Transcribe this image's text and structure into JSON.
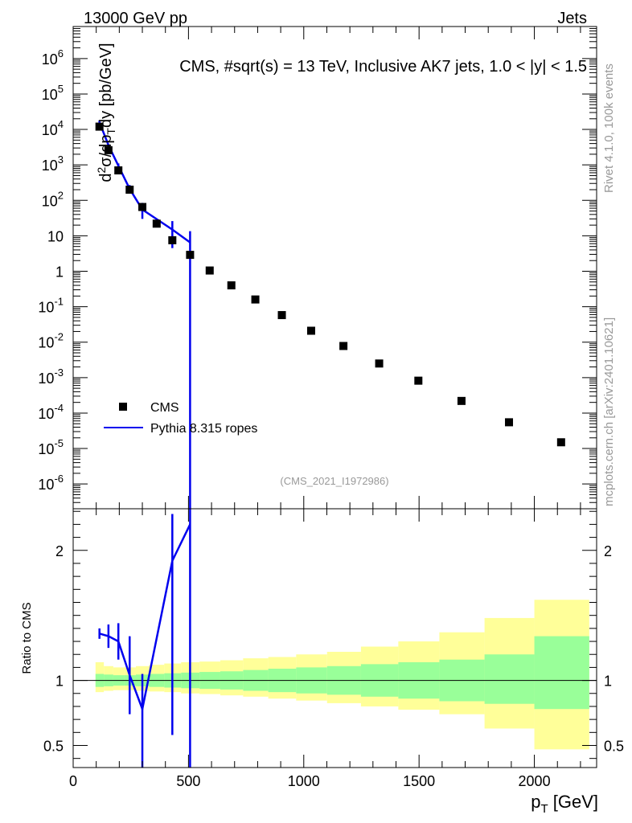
{
  "header": {
    "left": "13000 GeV pp",
    "right": "Jets"
  },
  "side": {
    "top": "Rivet 4.1.0,  100k events",
    "bottom": "mcplots.cern.ch [arXiv:2401.10621]"
  },
  "watermark": "(CMS_2021_I1972986)",
  "colors": {
    "mc": "#0000ee",
    "data": "#000000",
    "band_inner": "#99ff99",
    "band_outer": "#ffff99",
    "side_text": "#999999"
  },
  "chart_data": [
    {
      "type": "scatter",
      "role": "main",
      "title": "CMS, #sqrt(s) = 13 TeV, Inclusive AK7 jets, 1.0 < |y| < 1.5",
      "xlabel": "p_T [GeV]",
      "ylabel": "d^2σ/dp_T dy [pb/GeV]",
      "yscale": "log",
      "xlim": [
        0,
        2270
      ],
      "ylim": [
        2e-07,
        8000000.0
      ],
      "yticks": [
        {
          "v": 1000000.0,
          "base": "10",
          "exp": "6"
        },
        {
          "v": 100000.0,
          "base": "10",
          "exp": "5"
        },
        {
          "v": 10000.0,
          "base": "10",
          "exp": "4"
        },
        {
          "v": 1000.0,
          "base": "10",
          "exp": "3"
        },
        {
          "v": 100.0,
          "base": "10",
          "exp": "2"
        },
        {
          "v": 10,
          "base": "10",
          "exp": ""
        },
        {
          "v": 1,
          "base": "1",
          "exp": ""
        },
        {
          "v": 0.1,
          "base": "10",
          "exp": "-1"
        },
        {
          "v": 0.01,
          "base": "10",
          "exp": "-2"
        },
        {
          "v": 0.001,
          "base": "10",
          "exp": "-3"
        },
        {
          "v": 0.0001,
          "base": "10",
          "exp": "-4"
        },
        {
          "v": 1e-05,
          "base": "10",
          "exp": "-5"
        },
        {
          "v": 1e-06,
          "base": "10",
          "exp": "-6"
        }
      ],
      "legend": [
        {
          "label": "CMS",
          "kind": "marker"
        },
        {
          "label": "Pythia 8.315 ropes",
          "kind": "line"
        }
      ],
      "legend_position": "lower-left",
      "series": [
        {
          "name": "CMS",
          "x": [
            114,
            153,
            196,
            245,
            300,
            362,
            430,
            507,
            592,
            686,
            790,
            905,
            1032,
            1172,
            1327,
            1497,
            1684,
            1890,
            2116
          ],
          "y": [
            12000,
            2600,
            700,
            200,
            65,
            22,
            7.5,
            2.9,
            1.05,
            0.4,
            0.16,
            0.058,
            0.021,
            0.0078,
            0.0025,
            0.00082,
            0.00022,
            5.5e-05,
            1.5e-05
          ]
        },
        {
          "name": "Pythia 8.315 ropes",
          "x": [
            114,
            153,
            196,
            245,
            300,
            430,
            507
          ],
          "y": [
            16000,
            3600,
            950,
            210,
            55,
            15,
            6.5
          ],
          "err_lo": [
            14000,
            3300,
            800,
            160,
            30,
            4.5,
            1e-07
          ],
          "err_hi": [
            18000,
            3900,
            1100,
            270,
            85,
            26,
            13.5
          ]
        }
      ]
    },
    {
      "type": "line",
      "role": "ratio",
      "ylabel": "Ratio to CMS",
      "xlabel": "p_T [GeV]",
      "xlim": [
        0,
        2270
      ],
      "ylim": [
        0.33,
        2.32
      ],
      "xticks": [
        0,
        500,
        1000,
        1500,
        2000
      ],
      "yticks": [
        0.5,
        1,
        2
      ],
      "yticklabels": [
        "0.5",
        "1",
        "2"
      ],
      "bands": {
        "edges": [
          97,
          133,
          174,
          220,
          272,
          330,
          395,
          468,
          548,
          638,
          737,
          846,
          967,
          1101,
          1248,
          1410,
          1588,
          1784,
          2000,
          2238
        ],
        "inner_lo": [
          0.95,
          0.955,
          0.96,
          0.96,
          0.955,
          0.95,
          0.945,
          0.94,
          0.935,
          0.93,
          0.92,
          0.91,
          0.9,
          0.89,
          0.875,
          0.86,
          0.84,
          0.82,
          0.78
        ],
        "inner_hi": [
          1.05,
          1.045,
          1.04,
          1.04,
          1.045,
          1.05,
          1.055,
          1.06,
          1.065,
          1.07,
          1.08,
          1.09,
          1.1,
          1.11,
          1.125,
          1.14,
          1.16,
          1.2,
          1.34
        ],
        "outer_lo": [
          0.91,
          0.92,
          0.925,
          0.925,
          0.92,
          0.915,
          0.91,
          0.9,
          0.895,
          0.885,
          0.875,
          0.86,
          0.845,
          0.825,
          0.8,
          0.775,
          0.74,
          0.63,
          0.47
        ],
        "outer_hi": [
          1.14,
          1.11,
          1.1,
          1.1,
          1.11,
          1.12,
          1.13,
          1.14,
          1.145,
          1.155,
          1.17,
          1.18,
          1.2,
          1.22,
          1.26,
          1.3,
          1.37,
          1.48,
          1.62
        ]
      },
      "series": [
        {
          "name": "Pythia 8.315 ropes / CMS",
          "x": [
            114,
            153,
            196,
            245,
            300,
            430,
            507
          ],
          "y": [
            1.36,
            1.34,
            1.3,
            1.04,
            0.78,
            1.92,
            2.2
          ],
          "err_lo": [
            1.32,
            1.25,
            1.16,
            0.74,
            0.33,
            0.58,
            0.33
          ],
          "err_hi": [
            1.4,
            1.43,
            1.44,
            1.34,
            1.05,
            2.28,
            2.32
          ]
        }
      ]
    }
  ]
}
